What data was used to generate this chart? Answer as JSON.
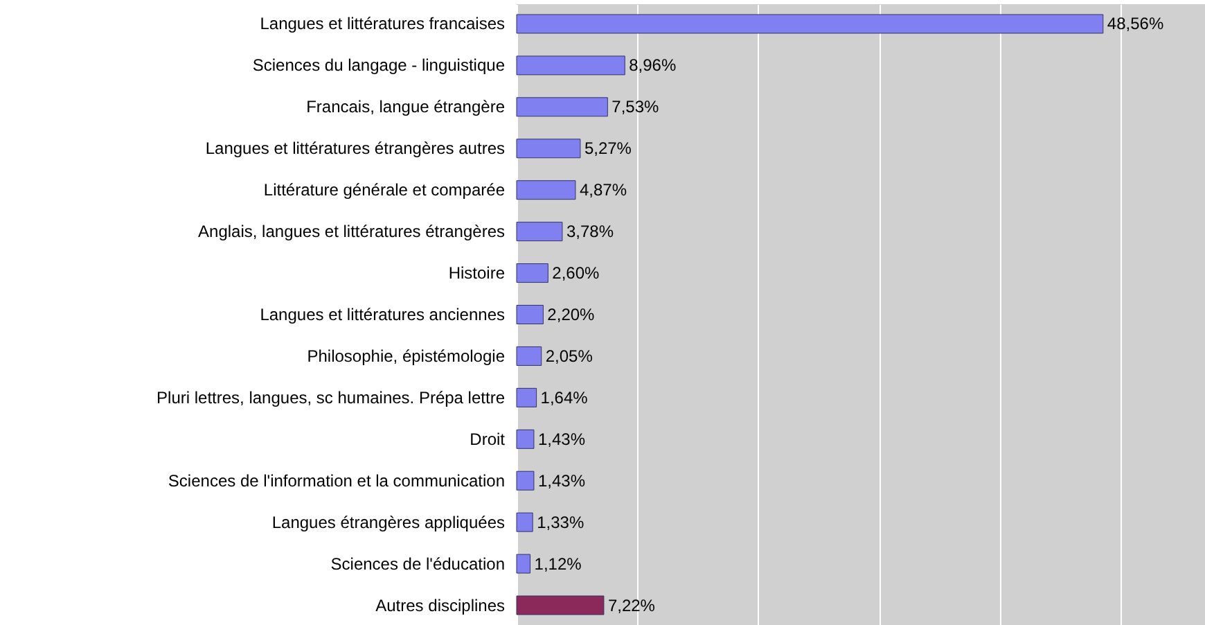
{
  "chart_data": {
    "type": "bar",
    "orientation": "horizontal",
    "categories": [
      "Langues et littératures francaises",
      "Sciences du langage - linguistique",
      "Francais, langue étrangère",
      "Langues et littératures étrangères autres",
      "Littérature générale et comparée",
      "Anglais, langues et littératures étrangères",
      "Histoire",
      "Langues et littératures anciennes",
      "Philosophie, épistémologie",
      "Pluri lettres, langues, sc humaines. Prépa lettre",
      "Droit",
      "Sciences de l'information et la communication",
      "Langues étrangères appliquées",
      "Sciences de l'éducation",
      "Autres disciplines"
    ],
    "values": [
      48.56,
      8.96,
      7.53,
      5.27,
      4.87,
      3.78,
      2.6,
      2.2,
      2.05,
      1.64,
      1.43,
      1.43,
      1.33,
      1.12,
      7.22
    ],
    "value_labels": [
      "48,56%",
      "8,96%",
      "7,53%",
      "5,27%",
      "4,87%",
      "3,78%",
      "2,60%",
      "2,20%",
      "2,05%",
      "1,64%",
      "1,43%",
      "1,43%",
      "1,33%",
      "1,12%",
      "7,22%"
    ],
    "colors": [
      "#8080f0",
      "#8080f0",
      "#8080f0",
      "#8080f0",
      "#8080f0",
      "#8080f0",
      "#8080f0",
      "#8080f0",
      "#8080f0",
      "#8080f0",
      "#8080f0",
      "#8080f0",
      "#8080f0",
      "#8080f0",
      "#8b2a5a"
    ],
    "xlim": [
      0,
      57
    ],
    "xticks": [
      {
        "value": 0,
        "label": null
      },
      {
        "value": 10,
        "label": null
      },
      {
        "value": 20,
        "label": null
      },
      {
        "value": 30,
        "label": null
      },
      {
        "value": 40,
        "label": null
      },
      {
        "value": 50,
        "label": null
      }
    ],
    "grid": "x"
  }
}
